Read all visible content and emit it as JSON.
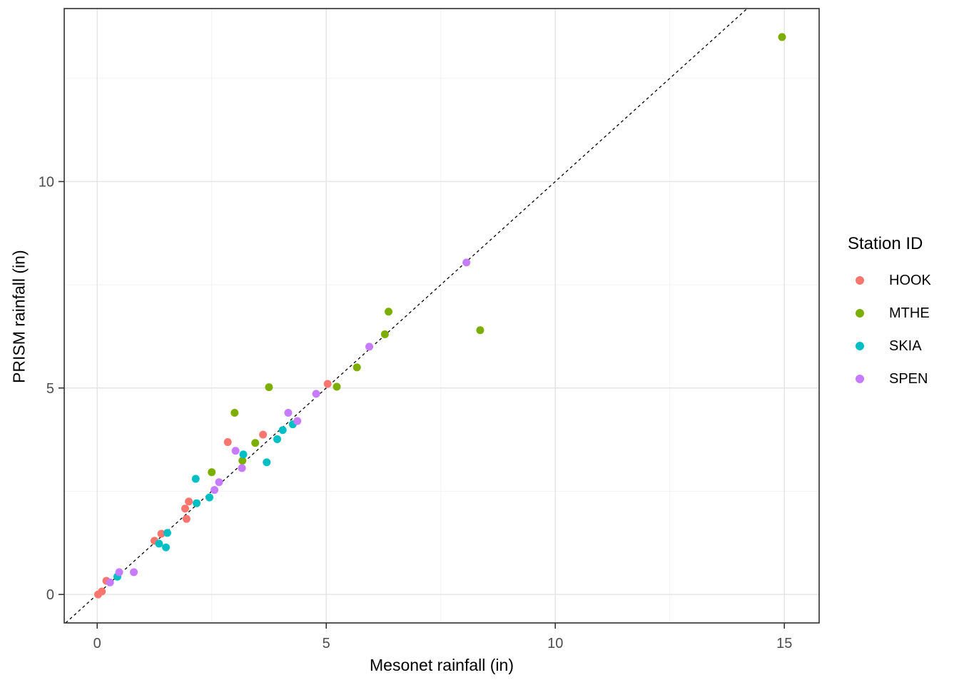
{
  "figure": {
    "x_axis_title": "Mesonet rainfall (in)",
    "y_axis_title": "PRISM rainfall (in)"
  },
  "legend": {
    "title": "Station ID",
    "items": [
      {
        "label": "HOOK",
        "color": "#F8766D"
      },
      {
        "label": "MTHE",
        "color": "#7CAE00"
      },
      {
        "label": "SKIA",
        "color": "#00BFC4"
      },
      {
        "label": "SPEN",
        "color": "#C77CFF"
      }
    ]
  },
  "chart_data": {
    "type": "scatter",
    "title": "",
    "xlabel": "Mesonet rainfall (in)",
    "ylabel": "PRISM rainfall (in)",
    "legend_title": "Station ID",
    "legend_position": "right",
    "grid": true,
    "xlim": [
      -0.72,
      15.76
    ],
    "ylim": [
      -0.69,
      14.19
    ],
    "x_ticks": [
      {
        "value": 0,
        "label": "0"
      },
      {
        "value": 5,
        "label": "5"
      },
      {
        "value": 10,
        "label": "10"
      },
      {
        "value": 15,
        "label": "15"
      }
    ],
    "y_ticks": [
      {
        "value": 0,
        "label": "0"
      },
      {
        "value": 5,
        "label": "5"
      },
      {
        "value": 10,
        "label": "10"
      }
    ],
    "x_minor": [
      2.5,
      7.5,
      12.5
    ],
    "y_minor": [
      2.5,
      7.5,
      12.5
    ],
    "reference_line": {
      "kind": "identity",
      "slope": 1,
      "intercept": 0,
      "style": "dashed",
      "color": "#000000"
    },
    "point_radius": 5.5,
    "colors": {
      "background": "#FFFFFF",
      "panel_border": "#2F2F2F",
      "grid_major": "#E4E4E4",
      "grid_minor": "#F2F2F2",
      "tick_mark": "#333333",
      "tick_label": "#4D4D4D"
    },
    "series": [
      {
        "name": "HOOK",
        "color": "#F8766D",
        "points": [
          [
            0.02,
            0.0
          ],
          [
            0.1,
            0.07
          ],
          [
            0.2,
            0.33
          ],
          [
            1.25,
            1.3
          ],
          [
            1.4,
            1.47
          ],
          [
            1.92,
            2.08
          ],
          [
            2.0,
            2.25
          ],
          [
            1.95,
            1.83
          ],
          [
            2.85,
            3.69
          ],
          [
            3.62,
            3.87
          ],
          [
            5.03,
            5.1
          ]
        ]
      },
      {
        "name": "MTHE",
        "color": "#7CAE00",
        "points": [
          [
            2.5,
            2.96
          ],
          [
            3.0,
            4.4
          ],
          [
            3.17,
            3.24
          ],
          [
            3.45,
            3.67
          ],
          [
            3.75,
            5.02
          ],
          [
            5.23,
            5.03
          ],
          [
            5.67,
            5.5
          ],
          [
            6.28,
            6.3
          ],
          [
            6.36,
            6.85
          ],
          [
            8.36,
            6.4
          ],
          [
            14.95,
            13.5
          ]
        ]
      },
      {
        "name": "SKIA",
        "color": "#00BFC4",
        "points": [
          [
            0.44,
            0.43
          ],
          [
            1.35,
            1.23
          ],
          [
            1.5,
            1.14
          ],
          [
            1.53,
            1.49
          ],
          [
            2.17,
            2.21
          ],
          [
            2.45,
            2.35
          ],
          [
            2.15,
            2.8
          ],
          [
            3.19,
            3.39
          ],
          [
            3.7,
            3.2
          ],
          [
            3.93,
            3.76
          ],
          [
            4.05,
            3.98
          ],
          [
            4.27,
            4.12
          ]
        ]
      },
      {
        "name": "SPEN",
        "color": "#C77CFF",
        "points": [
          [
            0.28,
            0.29
          ],
          [
            0.48,
            0.54
          ],
          [
            0.8,
            0.54
          ],
          [
            2.56,
            2.53
          ],
          [
            2.66,
            2.72
          ],
          [
            3.02,
            3.48
          ],
          [
            3.16,
            3.06
          ],
          [
            4.17,
            4.4
          ],
          [
            4.37,
            4.2
          ],
          [
            4.78,
            4.86
          ],
          [
            5.94,
            6.0
          ],
          [
            8.06,
            8.04
          ]
        ]
      }
    ]
  }
}
